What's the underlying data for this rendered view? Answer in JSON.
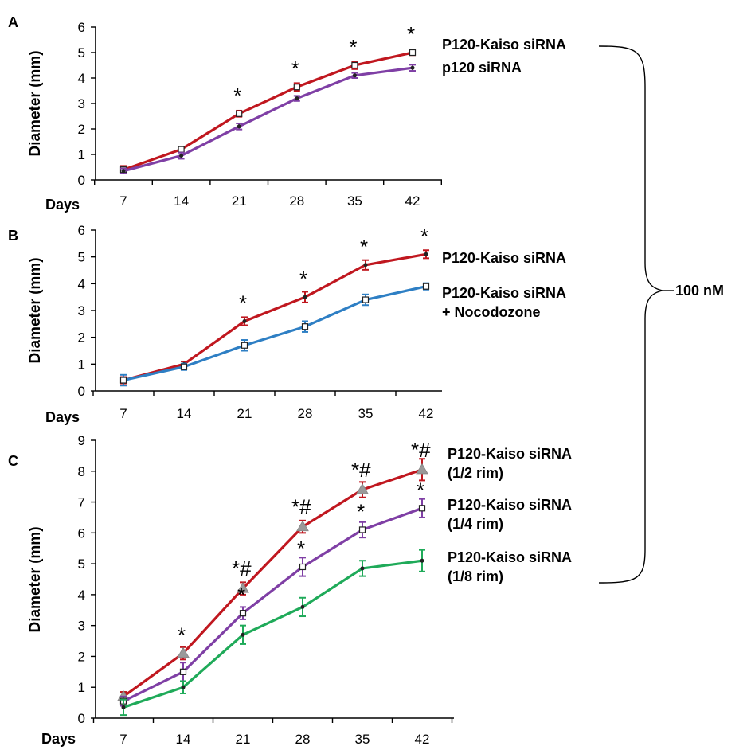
{
  "figure": {
    "bracket_label": "100 nM"
  },
  "chart_data": [
    {
      "panel": "A",
      "type": "line",
      "xlabel": "Days",
      "ylabel": "Diameter (mm)",
      "x": [
        7,
        14,
        21,
        28,
        35,
        42
      ],
      "ylim": [
        0,
        6
      ],
      "yticks": [
        0,
        1,
        2,
        3,
        4,
        5,
        6
      ],
      "series": [
        {
          "name": "P120-Kaiso siRNA",
          "color": "#c0171f",
          "marker": "open-square",
          "values": [
            0.4,
            1.2,
            2.6,
            3.65,
            4.5,
            5.0
          ],
          "errors": [
            0.15,
            0.1,
            0.12,
            0.15,
            0.15,
            0.1
          ]
        },
        {
          "name": "p120 siRNA",
          "color": "#7f3fa5",
          "marker": "dot",
          "values": [
            0.35,
            0.95,
            2.1,
            3.2,
            4.1,
            4.4
          ],
          "errors": [
            0.1,
            0.12,
            0.12,
            0.1,
            0.1,
            0.12
          ]
        }
      ],
      "annotations": [
        {
          "x": 21,
          "y": 2.6,
          "text": "*"
        },
        {
          "x": 28,
          "y": 3.65,
          "text": "*"
        },
        {
          "x": 35,
          "y": 4.5,
          "text": "*"
        },
        {
          "x": 42,
          "y": 5.0,
          "text": "*"
        }
      ]
    },
    {
      "panel": "B",
      "type": "line",
      "xlabel": "Days",
      "ylabel": "Diameter (mm)",
      "x": [
        7,
        14,
        21,
        28,
        35,
        42
      ],
      "ylim": [
        0,
        6
      ],
      "yticks": [
        0,
        1,
        2,
        3,
        4,
        5,
        6
      ],
      "series": [
        {
          "name": "P120-Kaiso siRNA",
          "color": "#c0171f",
          "marker": "dot",
          "values": [
            0.4,
            1.0,
            2.6,
            3.5,
            4.7,
            5.1
          ],
          "errors": [
            0.12,
            0.1,
            0.15,
            0.2,
            0.18,
            0.15
          ]
        },
        {
          "name": "P120-Kaiso siRNA + Nocodozone",
          "name_lines": [
            "P120-Kaiso siRNA",
            "+ Nocodozone"
          ],
          "color": "#2e7fc4",
          "marker": "open-square",
          "values": [
            0.4,
            0.9,
            1.7,
            2.4,
            3.4,
            3.9
          ],
          "errors": [
            0.2,
            0.12,
            0.2,
            0.2,
            0.2,
            0.12
          ]
        }
      ],
      "annotations": [
        {
          "x": 21,
          "y": 2.6,
          "text": "*"
        },
        {
          "x": 28,
          "y": 3.5,
          "text": "*"
        },
        {
          "x": 35,
          "y": 4.7,
          "text": "*"
        },
        {
          "x": 42,
          "y": 5.1,
          "text": "*"
        }
      ]
    },
    {
      "panel": "C",
      "type": "line",
      "xlabel": "Days",
      "ylabel": "Diameter (mm)",
      "x": [
        7,
        14,
        21,
        28,
        35,
        42
      ],
      "ylim": [
        0,
        9
      ],
      "yticks": [
        0,
        1,
        2,
        3,
        4,
        5,
        6,
        7,
        8,
        9
      ],
      "series": [
        {
          "name": "P120-Kaiso siRNA (1/2 rim)",
          "name_lines": [
            "P120-Kaiso siRNA",
            "(1/2 rim)"
          ],
          "color": "#c0171f",
          "marker": "triangle",
          "values": [
            0.7,
            2.1,
            4.2,
            6.2,
            7.4,
            8.05
          ],
          "errors": [
            0.15,
            0.2,
            0.2,
            0.2,
            0.25,
            0.35
          ]
        },
        {
          "name": "P120-Kaiso siRNA (1/4 rim)",
          "name_lines": [
            "P120-Kaiso siRNA",
            "(1/4 rim)"
          ],
          "color": "#7f3fa5",
          "marker": "open-square",
          "values": [
            0.55,
            1.5,
            3.4,
            4.9,
            6.1,
            6.8
          ],
          "errors": [
            0.15,
            0.3,
            0.2,
            0.3,
            0.25,
            0.3
          ]
        },
        {
          "name": "P120-Kaiso siRNA (1/8 rim)",
          "name_lines": [
            "P120-Kaiso siRNA",
            "(1/8 rim)"
          ],
          "color": "#1faa59",
          "marker": "dot",
          "values": [
            0.35,
            1.0,
            2.7,
            3.6,
            4.85,
            5.1
          ],
          "errors": [
            0.25,
            0.2,
            0.3,
            0.3,
            0.25,
            0.35
          ]
        }
      ],
      "annotations": [
        {
          "x": 14,
          "y": 2.1,
          "text": "*"
        },
        {
          "x": 21,
          "y": 4.2,
          "text": "*#"
        },
        {
          "x": 21,
          "y": 3.4,
          "text": "*"
        },
        {
          "x": 28,
          "y": 6.2,
          "text": "*#"
        },
        {
          "x": 28,
          "y": 4.9,
          "text": "*"
        },
        {
          "x": 35,
          "y": 7.4,
          "text": "*#"
        },
        {
          "x": 35,
          "y": 6.1,
          "text": "*"
        },
        {
          "x": 42,
          "y": 8.05,
          "text": "*#"
        },
        {
          "x": 42,
          "y": 6.8,
          "text": "*"
        }
      ]
    }
  ]
}
